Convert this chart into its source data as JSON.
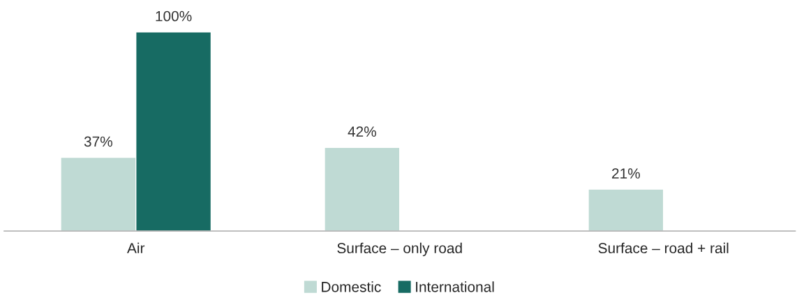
{
  "chart_data": {
    "type": "bar",
    "categories": [
      "Air",
      "Surface – only road",
      "Surface – road + rail"
    ],
    "series": [
      {
        "name": "Domestic",
        "color": "#bfdad4",
        "values": [
          37,
          42,
          21
        ],
        "value_labels": [
          "37%",
          "42%",
          "21%"
        ]
      },
      {
        "name": "International",
        "color": "#176b63",
        "values": [
          100,
          null,
          null
        ],
        "value_labels": [
          "100%",
          null,
          null
        ]
      }
    ],
    "legend": "bottom",
    "tick_labels": "x",
    "grid": false
  }
}
